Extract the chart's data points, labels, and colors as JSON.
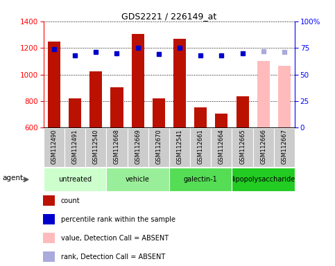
{
  "title": "GDS2221 / 226149_at",
  "samples": [
    "GSM112490",
    "GSM112491",
    "GSM112540",
    "GSM112668",
    "GSM112669",
    "GSM112670",
    "GSM112541",
    "GSM112661",
    "GSM112664",
    "GSM112665",
    "GSM112666",
    "GSM112667"
  ],
  "bar_values": [
    1245,
    820,
    1025,
    905,
    1305,
    820,
    1270,
    755,
    705,
    835,
    1100,
    1065
  ],
  "bar_absent": [
    false,
    false,
    false,
    false,
    false,
    false,
    false,
    false,
    false,
    false,
    true,
    true
  ],
  "percentile_values": [
    74,
    68,
    71,
    70,
    75,
    69,
    75,
    68,
    68,
    70,
    72,
    71
  ],
  "percentile_absent": [
    false,
    false,
    false,
    false,
    false,
    false,
    false,
    false,
    false,
    false,
    true,
    true
  ],
  "groups": [
    {
      "label": "untreated",
      "start": 0,
      "end": 3,
      "color": "#ccffcc"
    },
    {
      "label": "vehicle",
      "start": 3,
      "end": 6,
      "color": "#99ee99"
    },
    {
      "label": "galectin-1",
      "start": 6,
      "end": 9,
      "color": "#55dd55"
    },
    {
      "label": "lipopolysaccharide",
      "start": 9,
      "end": 12,
      "color": "#22cc22"
    }
  ],
  "ylim_left": [
    600,
    1400
  ],
  "ylim_right": [
    0,
    100
  ],
  "yticks_left": [
    600,
    800,
    1000,
    1200,
    1400
  ],
  "yticks_right": [
    0,
    25,
    50,
    75,
    100
  ],
  "bar_color_normal": "#bb1100",
  "bar_color_absent": "#ffbbbb",
  "dot_color_normal": "#0000cc",
  "dot_color_absent": "#aaaadd",
  "xtick_bg": "#cccccc",
  "legend_items": [
    {
      "label": "count",
      "color": "#bb1100"
    },
    {
      "label": "percentile rank within the sample",
      "color": "#0000cc"
    },
    {
      "label": "value, Detection Call = ABSENT",
      "color": "#ffbbbb"
    },
    {
      "label": "rank, Detection Call = ABSENT",
      "color": "#aaaadd"
    }
  ]
}
